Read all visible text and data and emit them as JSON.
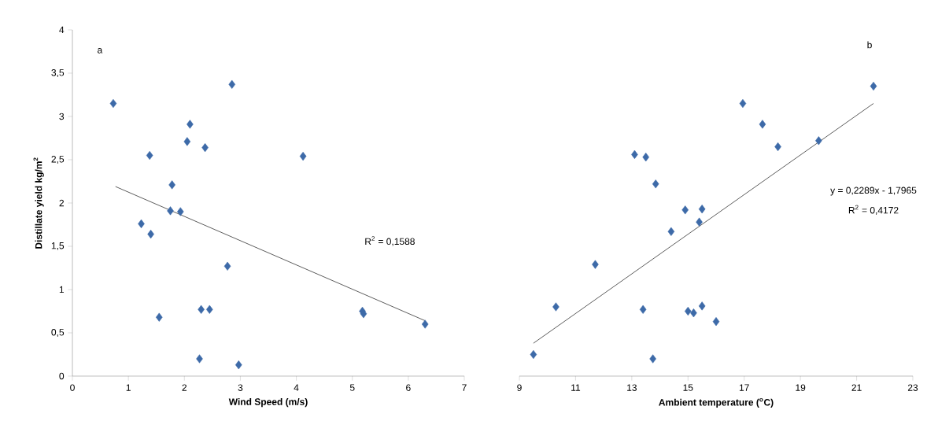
{
  "chart_data": [
    {
      "type": "scatter",
      "xlabel": "Wind Speed (m/s)",
      "ylabel": "Distillate yield kg/m$^{2}$",
      "xlim": [
        0,
        7
      ],
      "ylim": [
        0,
        4
      ],
      "xticks": [
        0,
        1,
        2,
        3,
        4,
        5,
        6,
        7
      ],
      "yticks": [
        0,
        {
          "value": 0.5,
          "label": "0,5"
        },
        1,
        {
          "value": 1.5,
          "label": "1,5"
        },
        2,
        {
          "value": 2.5,
          "label": "2,5"
        },
        3,
        {
          "value": 3.5,
          "label": "3,5"
        },
        4
      ],
      "grid": false,
      "annotations": [
        "a",
        "R$^{2}$ = 0,1588"
      ],
      "series": [
        {
          "marker": "diamond",
          "color": "#3d6aa8",
          "x": [
            0.73,
            2.85,
            2.1,
            2.05,
            2.37,
            1.38,
            4.12,
            1.78,
            1.75,
            1.93,
            1.23,
            1.4,
            2.77,
            2.3,
            2.45,
            1.55,
            5.18,
            5.2,
            6.3,
            2.27,
            2.97
          ],
          "values": [
            3.15,
            3.37,
            2.91,
            2.71,
            2.64,
            2.55,
            2.54,
            2.21,
            1.91,
            1.9,
            1.76,
            1.64,
            1.27,
            0.77,
            0.77,
            0.68,
            0.75,
            0.72,
            0.6,
            0.2,
            0.13
          ]
        },
        {
          "type": "line",
          "marker": "none",
          "color": "#333333",
          "x": [
            0.77,
            6.3
          ],
          "values": [
            2.19,
            0.64
          ]
        }
      ]
    },
    {
      "type": "scatter",
      "xlabel": "Ambient temperature ($^{o}$C)",
      "xlim": [
        9,
        23
      ],
      "ylim": [
        0,
        4
      ],
      "xticks": [
        9,
        11,
        13,
        15,
        17,
        19,
        21,
        23
      ],
      "tick_labels": "x",
      "grid": false,
      "annotations": [
        "b",
        "y = 0,2289x - 1,7965",
        "R$^{2}$ = 0,4172"
      ],
      "series": [
        {
          "marker": "diamond",
          "color": "#3d6aa8",
          "x": [
            9.5,
            10.3,
            11.7,
            13.1,
            13.5,
            13.85,
            13.4,
            13.75,
            14.4,
            14.9,
            15.5,
            15.4,
            15.0,
            15.2,
            15.5,
            16.0,
            16.95,
            17.65,
            18.2,
            19.65,
            21.6
          ],
          "values": [
            0.25,
            0.8,
            1.29,
            2.56,
            2.53,
            2.22,
            0.77,
            0.2,
            1.67,
            1.92,
            1.93,
            1.78,
            0.75,
            0.73,
            0.81,
            0.63,
            3.15,
            2.91,
            2.65,
            2.72,
            3.35
          ]
        },
        {
          "type": "line",
          "marker": "none",
          "color": "#333333",
          "x": [
            9.5,
            21.6
          ],
          "values": [
            0.38,
            3.15
          ]
        }
      ]
    }
  ]
}
